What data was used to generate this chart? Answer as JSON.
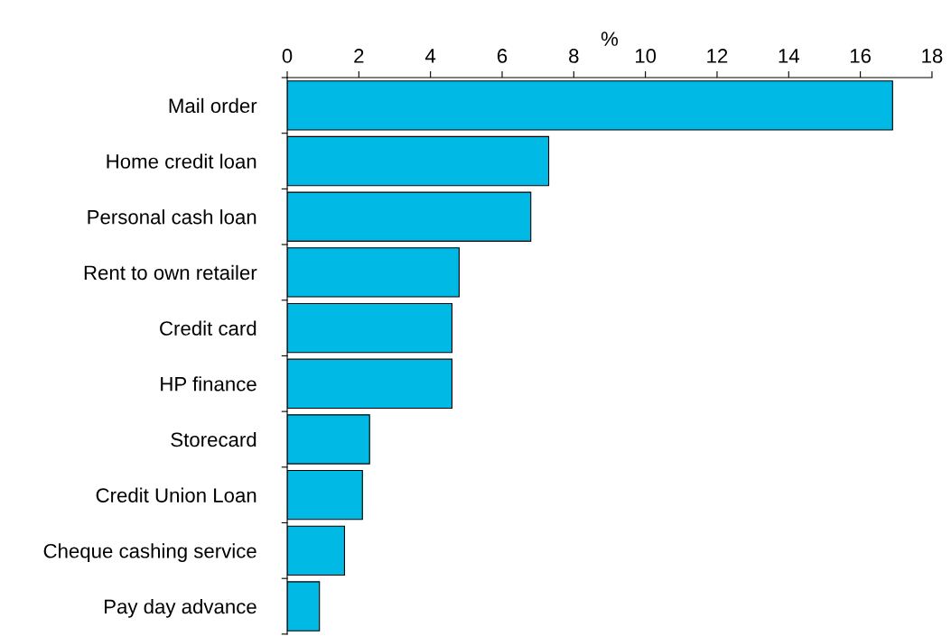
{
  "chart_data": {
    "type": "bar",
    "orientation": "horizontal",
    "xlabel": "%",
    "categories": [
      "Mail order",
      "Home credit loan",
      "Personal cash loan",
      "Rent to own retailer",
      "Credit card",
      "HP finance",
      "Storecard",
      "Credit Union Loan",
      "Cheque cashing service",
      "Pay day advance"
    ],
    "values": [
      16.9,
      7.3,
      6.8,
      4.8,
      4.6,
      4.6,
      2.3,
      2.1,
      1.6,
      0.9
    ],
    "color": "#00b9e4",
    "xlim": [
      0,
      18
    ],
    "xticks": [
      0,
      2,
      4,
      6,
      8,
      10,
      12,
      14,
      16,
      18
    ],
    "grid": false,
    "legend": false
  }
}
